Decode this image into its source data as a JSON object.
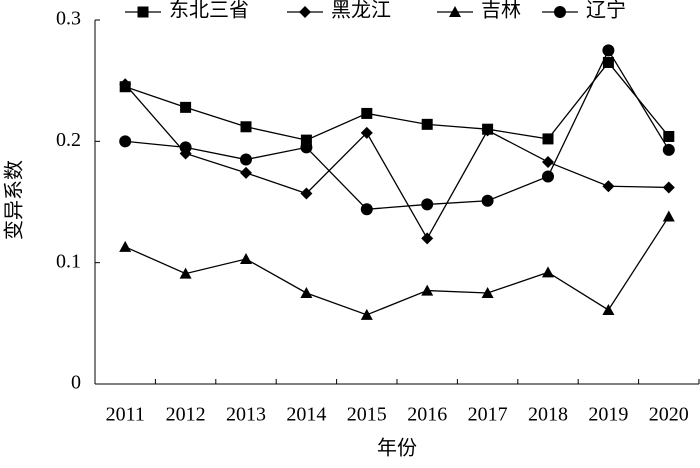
{
  "chart_data": {
    "type": "line",
    "x_label": "年份",
    "y_label": "变异系数",
    "categories": [
      "2011",
      "2012",
      "2013",
      "2014",
      "2015",
      "2016",
      "2017",
      "2018",
      "2019",
      "2020"
    ],
    "series": [
      {
        "name": "东北三省",
        "color": "#000000",
        "marker": "square",
        "values": [
          0.245,
          0.228,
          0.212,
          0.201,
          0.223,
          0.214,
          0.21,
          0.202,
          0.265,
          0.204
        ]
      },
      {
        "name": "黑龙江",
        "color": "#000000",
        "marker": "diamond",
        "values": [
          0.247,
          0.19,
          0.174,
          0.157,
          0.207,
          0.12,
          0.209,
          0.183,
          0.163,
          0.162
        ]
      },
      {
        "name": "吉林",
        "color": "#000000",
        "marker": "triangle",
        "values": [
          0.113,
          0.091,
          0.103,
          0.075,
          0.057,
          0.077,
          0.075,
          0.092,
          0.061,
          0.138
        ]
      },
      {
        "name": "辽宁",
        "color": "#000000",
        "marker": "circle",
        "values": [
          0.2,
          0.195,
          0.185,
          0.195,
          0.144,
          0.148,
          0.151,
          0.171,
          0.275,
          0.193
        ]
      }
    ],
    "ylim": [
      0,
      0.3
    ],
    "yticks": [
      0,
      0.1,
      0.2,
      0.3
    ],
    "legend": "top"
  }
}
